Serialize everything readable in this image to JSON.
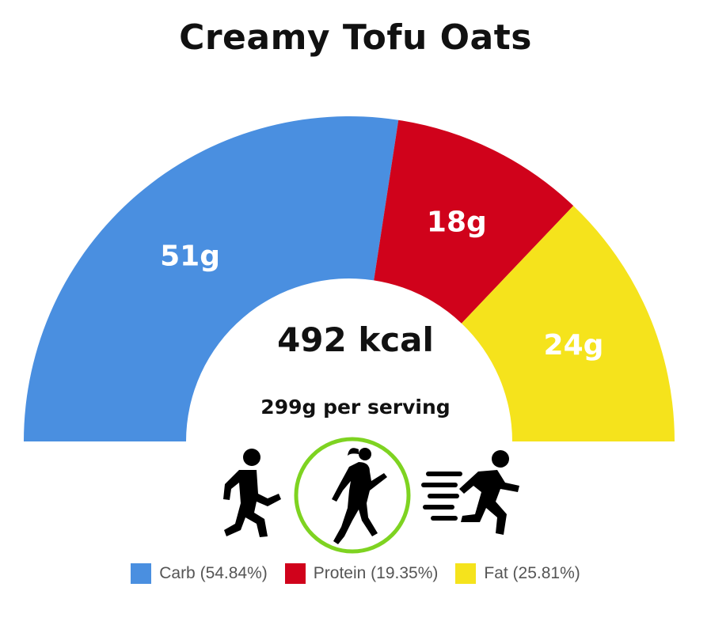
{
  "chart_data": {
    "type": "pie",
    "title": "Creamy Tofu Oats",
    "style": "half-donut gauge",
    "center_text": "492 kcal",
    "subtext": "299g per serving",
    "categories": [
      "Carb",
      "Protein",
      "Fat"
    ],
    "values": [
      51,
      18,
      24
    ],
    "value_labels": [
      "51g",
      "18g",
      "24g"
    ],
    "percentages": [
      54.84,
      19.35,
      25.81
    ],
    "legend_labels": [
      "Carb (54.84%)",
      "Protein (19.35%)",
      "Fat (25.81%)"
    ],
    "colors": [
      "#4a8fe0",
      "#d0021b",
      "#f5e31c"
    ],
    "legend_position": "bottom"
  },
  "activities": [
    {
      "icon": "walking-person-icon",
      "selected": false
    },
    {
      "icon": "running-person-icon",
      "selected": true
    },
    {
      "icon": "sprinting-person-icon",
      "selected": false
    }
  ],
  "highlight_color": "#7ed321"
}
